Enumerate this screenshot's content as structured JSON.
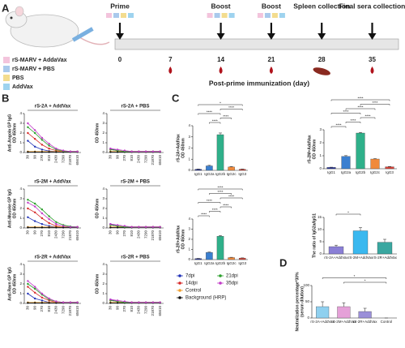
{
  "letters": [
    "A",
    "B",
    "C",
    "D"
  ],
  "panel_a": {
    "groups": [
      {
        "name": "rS-MARV + AddaVax",
        "color": "#f3c4dc"
      },
      {
        "name": "rS-MARV + PBS",
        "color": "#a9c9ec"
      },
      {
        "name": "PBS",
        "color": "#f3dc8e"
      },
      {
        "name": "AddVax",
        "color": "#9ed3ef"
      }
    ],
    "days": [
      0,
      7,
      14,
      21,
      28,
      35
    ],
    "labels": [
      "Prime",
      null,
      "Boost",
      "Boost",
      "Spleen collection",
      "Final sera collection"
    ],
    "axis_label": "Post-prime immunization (day)"
  },
  "chart_data": [
    {
      "type": "line",
      "title": "rS-2A + AddVax",
      "ylabel": [
        "Anti-Angola GP IgG",
        "OD 450nm"
      ],
      "categories": [
        "30",
        "90",
        "270",
        "810",
        "2430",
        "7290",
        "21870",
        "65610"
      ],
      "ylim": [
        0,
        4
      ],
      "yticks": [
        0,
        1,
        2,
        3,
        4
      ],
      "series": [
        {
          "name": "7dpi",
          "color": "#2233b8",
          "values": [
            1.2,
            0.6,
            0.3,
            0.15,
            0.1,
            0.1,
            0.1,
            0.1
          ]
        },
        {
          "name": "14dpi",
          "color": "#d62a2a",
          "values": [
            2.0,
            1.4,
            0.8,
            0.4,
            0.2,
            0.1,
            0.1,
            0.1
          ]
        },
        {
          "name": "Control",
          "color": "#f0a030",
          "values": [
            0.1,
            0.1,
            0.1,
            0.1,
            0.1,
            0.1,
            0.1,
            0.1
          ]
        },
        {
          "name": "Background (HRP)",
          "color": "#111111",
          "values": [
            0.05,
            0.05,
            0.05,
            0.05,
            0.05,
            0.05,
            0.05,
            0.05
          ]
        },
        {
          "name": "21dpi",
          "color": "#2ca02c",
          "values": [
            2.6,
            2.0,
            1.3,
            0.7,
            0.3,
            0.15,
            0.1,
            0.1
          ]
        },
        {
          "name": "35dpi",
          "color": "#c23cc8",
          "values": [
            3.0,
            2.3,
            1.5,
            0.9,
            0.4,
            0.2,
            0.1,
            0.1
          ]
        }
      ]
    },
    {
      "type": "line",
      "title": "rS-2A + PBS",
      "ylabel": [
        "OD 450nm"
      ],
      "categories": [
        "30",
        "90",
        "270",
        "810",
        "2430",
        "7290",
        "21870",
        "65610"
      ],
      "ylim": [
        0,
        4
      ],
      "yticks": [
        0,
        1,
        2,
        3,
        4
      ],
      "series": [
        {
          "values": [
            0.4,
            0.2,
            0.1,
            0.1,
            0.1,
            0.1,
            0.1,
            0.1
          ]
        },
        {
          "values": [
            0.3,
            0.2,
            0.1,
            0.1,
            0.1,
            0.1,
            0.1,
            0.1
          ]
        },
        {
          "values": [
            0.1,
            0.1,
            0.1,
            0.1,
            0.1,
            0.1,
            0.1,
            0.1
          ]
        },
        {
          "values": [
            0.05,
            0.05,
            0.05,
            0.05,
            0.05,
            0.05,
            0.05,
            0.05
          ]
        },
        {
          "values": [
            0.3,
            0.2,
            0.1,
            0.1,
            0.1,
            0.1,
            0.1,
            0.1
          ]
        },
        {
          "values": [
            0.4,
            0.3,
            0.2,
            0.1,
            0.1,
            0.1,
            0.1,
            0.1
          ]
        }
      ]
    },
    {
      "type": "line",
      "title": "rS-2M + AddVax",
      "ylabel": [
        "Anti-Musoke GP IgG",
        "OD 450nm"
      ],
      "categories": [
        "30",
        "90",
        "270",
        "810",
        "2430",
        "7290",
        "21870",
        "65610"
      ],
      "ylim": [
        0,
        4
      ],
      "yticks": [
        0,
        1,
        2,
        3,
        4
      ],
      "series": [
        {
          "values": [
            1.1,
            0.7,
            0.4,
            0.2,
            0.1,
            0.1,
            0.1,
            0.1
          ]
        },
        {
          "values": [
            2.0,
            1.6,
            1.0,
            0.5,
            0.2,
            0.1,
            0.1,
            0.1
          ]
        },
        {
          "values": [
            0.1,
            0.1,
            0.1,
            0.1,
            0.1,
            0.1,
            0.1,
            0.1
          ]
        },
        {
          "values": [
            0.05,
            0.05,
            0.05,
            0.05,
            0.05,
            0.05,
            0.05,
            0.05
          ]
        },
        {
          "values": [
            2.9,
            2.5,
            1.9,
            1.2,
            0.6,
            0.3,
            0.15,
            0.1
          ]
        },
        {
          "values": [
            2.6,
            2.2,
            1.5,
            0.9,
            0.4,
            0.2,
            0.1,
            0.1
          ]
        }
      ]
    },
    {
      "type": "line",
      "title": "rS-2M + PBS",
      "ylabel": [
        "OD 450nm"
      ],
      "categories": [
        "30",
        "90",
        "270",
        "810",
        "2430",
        "7290",
        "21870",
        "65610"
      ],
      "ylim": [
        0,
        4
      ],
      "yticks": [
        0,
        1,
        2,
        3,
        4
      ],
      "series": [
        {
          "values": [
            0.4,
            0.2,
            0.1,
            0.1,
            0.1,
            0.1,
            0.1,
            0.1
          ]
        },
        {
          "values": [
            0.3,
            0.2,
            0.1,
            0.1,
            0.1,
            0.1,
            0.1,
            0.1
          ]
        },
        {
          "values": [
            0.1,
            0.1,
            0.1,
            0.1,
            0.1,
            0.1,
            0.1,
            0.1
          ]
        },
        {
          "values": [
            0.05,
            0.05,
            0.05,
            0.05,
            0.05,
            0.05,
            0.05,
            0.05
          ]
        },
        {
          "values": [
            0.3,
            0.2,
            0.1,
            0.1,
            0.1,
            0.1,
            0.1,
            0.1
          ]
        },
        {
          "values": [
            0.4,
            0.3,
            0.2,
            0.1,
            0.1,
            0.1,
            0.1,
            0.1
          ]
        }
      ]
    },
    {
      "type": "line",
      "title": "rS-2R + AddVax",
      "ylabel": [
        "Anti-Ravn GP IgG",
        "OD 450nm"
      ],
      "categories": [
        "30",
        "90",
        "270",
        "810",
        "2430",
        "7290",
        "21870",
        "65610"
      ],
      "ylim": [
        0,
        4
      ],
      "yticks": [
        0,
        1,
        2,
        3,
        4
      ],
      "series": [
        {
          "values": [
            1.0,
            0.5,
            0.3,
            0.1,
            0.1,
            0.1,
            0.1,
            0.1
          ]
        },
        {
          "values": [
            1.7,
            1.1,
            0.6,
            0.3,
            0.1,
            0.1,
            0.1,
            0.1
          ]
        },
        {
          "values": [
            0.1,
            0.1,
            0.1,
            0.1,
            0.1,
            0.1,
            0.1,
            0.1
          ]
        },
        {
          "values": [
            0.05,
            0.05,
            0.05,
            0.05,
            0.05,
            0.05,
            0.05,
            0.05
          ]
        },
        {
          "values": [
            2.0,
            1.5,
            0.9,
            0.4,
            0.2,
            0.1,
            0.1,
            0.1
          ]
        },
        {
          "values": [
            2.3,
            1.7,
            1.0,
            0.5,
            0.2,
            0.1,
            0.1,
            0.1
          ]
        }
      ]
    },
    {
      "type": "line",
      "title": "rS-2R + PBS",
      "ylabel": [
        "OD 450nm"
      ],
      "categories": [
        "30",
        "90",
        "270",
        "810",
        "2430",
        "7290",
        "21870",
        "65610"
      ],
      "ylim": [
        0,
        4
      ],
      "yticks": [
        0,
        1,
        2,
        3,
        4
      ],
      "series": [
        {
          "values": [
            0.4,
            0.2,
            0.1,
            0.1,
            0.1,
            0.1,
            0.1,
            0.1
          ]
        },
        {
          "values": [
            0.3,
            0.2,
            0.1,
            0.1,
            0.1,
            0.1,
            0.1,
            0.1
          ]
        },
        {
          "values": [
            0.1,
            0.1,
            0.1,
            0.1,
            0.1,
            0.1,
            0.1,
            0.1
          ]
        },
        {
          "values": [
            0.05,
            0.05,
            0.05,
            0.05,
            0.05,
            0.05,
            0.05,
            0.05
          ]
        },
        {
          "values": [
            0.3,
            0.2,
            0.1,
            0.1,
            0.1,
            0.1,
            0.1,
            0.1
          ]
        },
        {
          "values": [
            0.4,
            0.3,
            0.2,
            0.1,
            0.1,
            0.1,
            0.1,
            0.1
          ]
        }
      ]
    },
    {
      "type": "bar",
      "ylabel": [
        "rS-2A+AddVax",
        "OD 450nm"
      ],
      "categories": [
        "IgG1",
        "IgG2a",
        "IgG2b",
        "IgG2c",
        "IgG3"
      ],
      "values": [
        0.1,
        0.4,
        3.2,
        0.3,
        0.1
      ],
      "errors": [
        0.02,
        0.05,
        0.15,
        0.04,
        0.02
      ],
      "colors": [
        "#24339a",
        "#3a7fd0",
        "#2fb08a",
        "#f08a3c",
        "#d9453a"
      ],
      "ylim": [
        0,
        4
      ],
      "yticks": [
        0,
        1,
        2,
        3,
        4
      ],
      "significance": [
        "****",
        "****",
        "****",
        "****",
        "*"
      ]
    },
    {
      "type": "bar",
      "ylabel": [
        "rS-2M+AddVax",
        "OD 450nm"
      ],
      "categories": [
        "IgG1",
        "IgG2a",
        "IgG2b",
        "IgG2c",
        "IgG3"
      ],
      "values": [
        0.1,
        0.95,
        2.75,
        0.75,
        0.15
      ],
      "errors": [
        0.02,
        0.06,
        0.05,
        0.03,
        0.02
      ],
      "colors": [
        "#24339a",
        "#3a7fd0",
        "#2fb08a",
        "#f08a3c",
        "#d9453a"
      ],
      "ylim": [
        0,
        3
      ],
      "yticks": [
        0,
        1,
        2,
        3
      ],
      "significance": [
        "****",
        "****",
        "****",
        "****",
        "****",
        "****",
        "****"
      ]
    },
    {
      "type": "bar",
      "ylabel": [
        "rS-2R+AddVax",
        "OD 450nm"
      ],
      "categories": [
        "IgG1",
        "IgG2a",
        "IgG2b",
        "IgG2c",
        "IgG3"
      ],
      "values": [
        0.1,
        0.7,
        2.3,
        0.2,
        0.15
      ],
      "errors": [
        0.02,
        0.04,
        0.08,
        0.03,
        0.02
      ],
      "colors": [
        "#24339a",
        "#3a7fd0",
        "#2fb08a",
        "#f08a3c",
        "#d9453a"
      ],
      "ylim": [
        0,
        4
      ],
      "yticks": [
        0,
        1,
        2,
        3,
        4
      ],
      "significance": [
        "****",
        "****",
        "****",
        "****",
        "****",
        "****",
        "****"
      ]
    },
    {
      "type": "bar",
      "ylabel": [
        "The ratio of IgG2a/IgG1"
      ],
      "categories": [
        "rS-2A+AddVax",
        "rS-2M+AddVax",
        "rS-2R+AddVax"
      ],
      "values": [
        3,
        9.5,
        4.8
      ],
      "errors": [
        0.6,
        1.3,
        1.2
      ],
      "colors": [
        "#8a7fd6",
        "#3ab8ef",
        "#3aa7a0"
      ],
      "ylim": [
        0,
        15
      ],
      "yticks": [
        0,
        5,
        10,
        15
      ],
      "significance": [
        "*"
      ]
    },
    {
      "type": "bar",
      "ylabel": [
        "Neutralization percentage*30%",
        "(serum dilution)"
      ],
      "categories": [
        "rS-2A+AddVax",
        "rS-2M+AddVax",
        "rS-2R+AddVax",
        "Control"
      ],
      "values": [
        35,
        35,
        20,
        0
      ],
      "errors": [
        15,
        12,
        10,
        0
      ],
      "colors": [
        "#8fd0ef",
        "#e5a0d8",
        "#9a8fd8",
        "#cccccc"
      ],
      "ylim": [
        0,
        100
      ],
      "yticks": [
        0,
        50,
        100
      ],
      "significance": [
        "*",
        "*"
      ]
    }
  ]
}
